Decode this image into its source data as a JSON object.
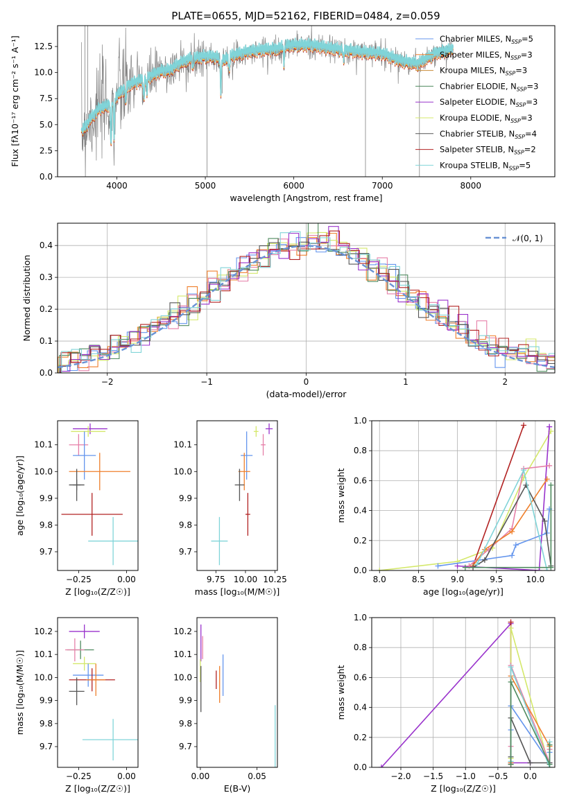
{
  "figure_title": "PLATE=0655, MJD=52162, FIBERID=0484, z=0.059",
  "colors": {
    "chabrier_miles": "#6495ed",
    "salpeter_miles": "#ef7f2b",
    "kroupa_miles": "#c78a35",
    "chabrier_elodie": "#4e8a5e",
    "salpeter_elodie": "#9932cc",
    "kroupa_elodie": "#d4e86a",
    "chabrier_stelib": "#555555",
    "salpeter_stelib": "#b22222",
    "kroupa_stelib": "#80d4d8",
    "pink": "#e67fa8",
    "data_spectrum": "#808080",
    "normal": "#6a93d4"
  },
  "chart_data": [
    {
      "id": "spectrum",
      "type": "line",
      "title": "PLATE=0655, MJD=52162, FIBERID=0484, z=0.059",
      "xlabel": "wavelength [Angstrom, rest frame]",
      "ylabel": "Flux [fλ10⁻¹⁷ erg cm⁻² s⁻¹ A⁻¹]",
      "xlim": [
        3330,
        8950
      ],
      "ylim": [
        0,
        14.5
      ],
      "xticks": [
        "4000",
        "5000",
        "6000",
        "7000",
        "8000"
      ],
      "yticks": [
        "0.0",
        "2.5",
        "5.0",
        "7.5",
        "10.0",
        "12.5"
      ],
      "continuum": {
        "x": [
          3600,
          3700,
          3800,
          3900,
          4000,
          4100,
          4200,
          4300,
          4400,
          4500,
          4600,
          4700,
          4800,
          4900,
          5000,
          5100,
          5200,
          5300,
          5400,
          5500,
          5600,
          5700,
          5800,
          5900,
          6000,
          6200,
          6400,
          6600,
          6800,
          7000,
          7200,
          7400,
          7600,
          7800
        ],
        "y": [
          4.2,
          5.5,
          6.5,
          6.8,
          7.7,
          8.6,
          9.0,
          9.3,
          9.7,
          10.1,
          10.2,
          10.8,
          11.2,
          11.4,
          11.5,
          11.5,
          11.1,
          11.6,
          11.8,
          12.0,
          12.1,
          12.2,
          12.2,
          12.5,
          12.6,
          12.6,
          12.3,
          12.1,
          11.9,
          11.8,
          11.1,
          10.8,
          11.8,
          12.2
        ]
      },
      "legend": [
        {
          "label": "Chabrier MILES, N",
          "sub": "SSP",
          "suffix": "=5",
          "color": "chabrier_miles"
        },
        {
          "label": "Salpeter MILES, N",
          "sub": "SSP",
          "suffix": "=3",
          "color": "salpeter_miles"
        },
        {
          "label": "Kroupa MILES, N",
          "sub": "SSP",
          "suffix": "=3",
          "color": "kroupa_miles"
        },
        {
          "label": "Chabrier ELODIE, N",
          "sub": "SSP",
          "suffix": "=3",
          "color": "chabrier_elodie"
        },
        {
          "label": "Salpeter ELODIE, N",
          "sub": "SSP",
          "suffix": "=3",
          "color": "salpeter_elodie"
        },
        {
          "label": "Kroupa ELODIE, N",
          "sub": "SSP",
          "suffix": "=3",
          "color": "kroupa_elodie"
        },
        {
          "label": "Chabrier STELIB, N",
          "sub": "SSP",
          "suffix": "=4",
          "color": "chabrier_stelib"
        },
        {
          "label": "Salpeter STELIB, N",
          "sub": "SSP",
          "suffix": "=2",
          "color": "salpeter_stelib"
        },
        {
          "label": "Kroupa STELIB, N",
          "sub": "SSP",
          "suffix": "=5",
          "color": "kroupa_stelib"
        }
      ]
    },
    {
      "id": "residuals",
      "type": "line",
      "xlabel": "(data-model)/error",
      "ylabel": "Normed distribution",
      "xlim": [
        -2.5,
        2.5
      ],
      "ylim": [
        0,
        0.47
      ],
      "xticks": [
        "−2",
        "−1",
        "0",
        "1",
        "2"
      ],
      "yticks": [
        "0.0",
        "0.1",
        "0.2",
        "0.3",
        "0.4"
      ],
      "grid": true,
      "legend_label": "𝒩(0, 1)",
      "legend_position": "top-right",
      "hist_x": [
        -2.5,
        -2.4,
        -2.3,
        -2.2,
        -2.1,
        -2.0,
        -1.9,
        -1.8,
        -1.7,
        -1.6,
        -1.5,
        -1.4,
        -1.3,
        -1.2,
        -1.1,
        -1.0,
        -0.9,
        -0.8,
        -0.7,
        -0.6,
        -0.5,
        -0.4,
        -0.3,
        -0.2,
        -0.1,
        0.0,
        0.1,
        0.2,
        0.3,
        0.4,
        0.5,
        0.6,
        0.7,
        0.8,
        0.9,
        1.0,
        1.1,
        1.2,
        1.3,
        1.4,
        1.5,
        1.6,
        1.7,
        1.8,
        1.9,
        2.0,
        2.1,
        2.2,
        2.3,
        2.4,
        2.5
      ]
    },
    {
      "id": "age_vs_z",
      "type": "scatter",
      "xlabel": "Z [log₁₀(Z/Z☉)]",
      "ylabel": "age  [log₁₀(age/yr)]",
      "xlim": [
        -0.36,
        0.06
      ],
      "ylim": [
        9.63,
        10.19
      ],
      "xticks": [
        "−0.25",
        "0.00"
      ],
      "yticks": [
        "9.7",
        "9.8",
        "9.9",
        "10.0",
        "10.1"
      ],
      "points": [
        {
          "x": -0.19,
          "y": 10.16,
          "xerr": 0.09,
          "yerr": 0.02,
          "color": "salpeter_elodie"
        },
        {
          "x": -0.2,
          "y": 10.15,
          "xerr": 0.09,
          "yerr": 0.02,
          "color": "kroupa_elodie"
        },
        {
          "x": -0.25,
          "y": 10.1,
          "xerr": 0.05,
          "yerr": 0.04,
          "color": "pink"
        },
        {
          "x": -0.22,
          "y": 10.06,
          "xerr": 0.06,
          "yerr": 0.09,
          "color": "chabrier_miles"
        },
        {
          "x": -0.14,
          "y": 10.0,
          "xerr": 0.16,
          "yerr": 0.07,
          "color": "salpeter_miles"
        },
        {
          "x": -0.26,
          "y": 9.95,
          "xerr": 0.04,
          "yerr": 0.02,
          "color": "chabrier_stelib"
        },
        {
          "x": -0.26,
          "y": 9.95,
          "xerr": 0.02,
          "yerr": 0.06,
          "color": "chabrier_stelib"
        },
        {
          "x": -0.18,
          "y": 9.84,
          "xerr": 0.16,
          "yerr": 0.08,
          "color": "salpeter_stelib"
        },
        {
          "x": -0.07,
          "y": 9.74,
          "xerr": 0.13,
          "yerr": 0.09,
          "color": "kroupa_stelib"
        }
      ]
    },
    {
      "id": "age_vs_mass",
      "type": "scatter",
      "xlabel": "mass [log₁₀(M/M☉)]",
      "xlim": [
        9.59,
        10.27
      ],
      "ylim": [
        9.63,
        10.19
      ],
      "xticks": [
        "9.75",
        "10.00",
        "10.25"
      ],
      "yticks": [
        "9.7",
        "9.8",
        "9.9",
        "10.0",
        "10.1"
      ],
      "points": [
        {
          "x": 10.2,
          "y": 10.16,
          "xerr": 0.03,
          "yerr": 0.02,
          "color": "salpeter_elodie"
        },
        {
          "x": 10.09,
          "y": 10.15,
          "xerr": 0.02,
          "yerr": 0.02,
          "color": "kroupa_elodie"
        },
        {
          "x": 10.15,
          "y": 10.1,
          "xerr": 0.02,
          "yerr": 0.04,
          "color": "pink"
        },
        {
          "x": 10.01,
          "y": 10.06,
          "xerr": 0.05,
          "yerr": 0.09,
          "color": "chabrier_miles"
        },
        {
          "x": 9.99,
          "y": 10.0,
          "xerr": 0.05,
          "yerr": 0.07,
          "color": "salpeter_miles"
        },
        {
          "x": 9.95,
          "y": 9.95,
          "xerr": 0.04,
          "yerr": 0.06,
          "color": "chabrier_stelib"
        },
        {
          "x": 10.02,
          "y": 9.84,
          "xerr": 0.02,
          "yerr": 0.08,
          "color": "salpeter_stelib"
        },
        {
          "x": 9.78,
          "y": 9.74,
          "xerr": 0.07,
          "yerr": 0.09,
          "color": "kroupa_stelib"
        }
      ]
    },
    {
      "id": "mass_weight_vs_age",
      "type": "line",
      "xlabel": "age  [log₁₀(age/yr)]",
      "ylabel": "mass weight",
      "xlim": [
        7.9,
        10.25
      ],
      "ylim": [
        0,
        1
      ],
      "xticks": [
        "8.0",
        "8.5",
        "9.0",
        "9.5",
        "10.0"
      ],
      "yticks": [
        "0.0",
        "0.2",
        "0.4",
        "0.6",
        "0.8",
        "1.0"
      ],
      "grid": true,
      "series": [
        {
          "color": "kroupa_elodie",
          "x": [
            8.0,
            9.0,
            9.45,
            9.85,
            10.2
          ],
          "y": [
            0.0,
            0.06,
            0.15,
            0.62,
            0.93
          ]
        },
        {
          "color": "salpeter_stelib",
          "x": [
            9.2,
            9.85
          ],
          "y": [
            0.03,
            0.97
          ]
        },
        {
          "color": "salpeter_elodie",
          "x": [
            9.0,
            10.05,
            10.18,
            10.18
          ],
          "y": [
            0.03,
            0.0,
            0.96,
            0.96
          ]
        },
        {
          "color": "chabrier_miles",
          "x": [
            8.75,
            9.7,
            9.75,
            10.15,
            10.18
          ],
          "y": [
            0.03,
            0.1,
            0.17,
            0.25,
            0.41
          ]
        },
        {
          "color": "pink",
          "x": [
            9.15,
            9.4,
            9.7,
            9.85,
            10.18
          ],
          "y": [
            0.03,
            0.14,
            0.28,
            0.68,
            0.7
          ]
        },
        {
          "color": "salpeter_miles",
          "x": [
            9.2,
            9.35,
            9.7,
            10.15
          ],
          "y": [
            0.03,
            0.14,
            0.26,
            0.61
          ]
        },
        {
          "color": "chabrier_stelib",
          "x": [
            9.2,
            9.35,
            9.88,
            10.12,
            10.2
          ],
          "y": [
            0.02,
            0.07,
            0.57,
            0.33,
            0.03
          ]
        },
        {
          "color": "kroupa_stelib",
          "x": [
            9.25,
            9.85,
            10.15
          ],
          "y": [
            0.04,
            0.67,
            0.0
          ]
        },
        {
          "color": "chabrier_elodie",
          "x": [
            9.1,
            10.2,
            10.2
          ],
          "y": [
            0.02,
            0.02,
            0.57
          ]
        }
      ]
    },
    {
      "id": "mass_vs_z",
      "type": "scatter",
      "xlabel": "Z [log₁₀(Z/Z☉)]",
      "ylabel": "mass [log₁₀(M/M☉)]",
      "xlim": [
        -0.36,
        0.06
      ],
      "ylim": [
        9.61,
        10.26
      ],
      "xticks": [
        "−0.25",
        "0.00"
      ],
      "yticks": [
        "9.7",
        "9.8",
        "9.9",
        "10.0",
        "10.1",
        "10.2"
      ],
      "points": [
        {
          "x": -0.22,
          "y": 10.2,
          "xerr": 0.08,
          "yerr": 0.03,
          "color": "salpeter_elodie"
        },
        {
          "x": -0.24,
          "y": 10.12,
          "xerr": 0.07,
          "yerr": 0.04,
          "color": "chabrier_elodie"
        },
        {
          "x": -0.27,
          "y": 10.12,
          "xerr": 0.05,
          "yerr": 0.05,
          "color": "pink"
        },
        {
          "x": -0.22,
          "y": 10.06,
          "xerr": 0.06,
          "yerr": 0.03,
          "color": "kroupa_elodie"
        },
        {
          "x": -0.2,
          "y": 10.01,
          "xerr": 0.08,
          "yerr": 0.05,
          "color": "chabrier_miles"
        },
        {
          "x": -0.18,
          "y": 9.99,
          "xerr": 0.12,
          "yerr": 0.05,
          "color": "salpeter_stelib"
        },
        {
          "x": -0.16,
          "y": 9.99,
          "xerr": 0.05,
          "yerr": 0.07,
          "color": "salpeter_miles"
        },
        {
          "x": -0.26,
          "y": 9.94,
          "xerr": 0.04,
          "yerr": 0.06,
          "color": "chabrier_stelib"
        },
        {
          "x": -0.07,
          "y": 9.73,
          "xerr": 0.16,
          "yerr": 0.09,
          "color": "kroupa_stelib"
        }
      ]
    },
    {
      "id": "mass_vs_ebv",
      "type": "scatter",
      "xlabel": "E(B-V)",
      "xlim": [
        -0.003,
        0.068
      ],
      "ylim": [
        9.61,
        10.26
      ],
      "xticks": [
        "0.00",
        "0.05"
      ],
      "yticks": [
        "9.7",
        "9.8",
        "9.9",
        "10.0",
        "10.1",
        "10.2"
      ],
      "points": [
        {
          "x": 0.0005,
          "y": 10.15,
          "xerr": 0,
          "yerr": 0.08,
          "color": "salpeter_elodie"
        },
        {
          "x": 0.002,
          "y": 10.13,
          "xerr": 0,
          "yerr": 0.05,
          "color": "pink"
        },
        {
          "x": 0.0,
          "y": 10.03,
          "xerr": 0,
          "yerr": 0.05,
          "color": "kroupa_elodie"
        },
        {
          "x": 0.0005,
          "y": 9.95,
          "xerr": 0,
          "yerr": 0.1,
          "color": "chabrier_stelib"
        },
        {
          "x": 0.02,
          "y": 10.01,
          "xerr": 0,
          "yerr": 0.09,
          "color": "chabrier_miles"
        },
        {
          "x": 0.017,
          "y": 9.97,
          "xerr": 0,
          "yerr": 0.08,
          "color": "salpeter_miles"
        },
        {
          "x": 0.014,
          "y": 9.99,
          "xerr": 0,
          "yerr": 0.04,
          "color": "salpeter_stelib"
        },
        {
          "x": 0.066,
          "y": 9.73,
          "xerr": 0,
          "yerr": 0.15,
          "color": "kroupa_stelib"
        }
      ]
    },
    {
      "id": "mass_weight_vs_z",
      "type": "line",
      "xlabel": "Z [log₁₀(Z/Z☉)]",
      "ylabel": "mass weight",
      "xlim": [
        -2.45,
        0.38
      ],
      "ylim": [
        0,
        1
      ],
      "xticks": [
        "−2.0",
        "−1.5",
        "−1.0",
        "−0.5",
        "0.0"
      ],
      "yticks": [
        "0.0",
        "0.2",
        "0.4",
        "0.6",
        "0.8",
        "1.0"
      ],
      "grid": true,
      "series": [
        {
          "color": "salpeter_elodie",
          "x": [
            -2.3,
            -0.3,
            -0.3,
            0.0
          ],
          "y": [
            0.0,
            0.96,
            0.03,
            0.03
          ]
        },
        {
          "color": "salpeter_stelib",
          "x": [
            -0.3,
            -0.3
          ],
          "y": [
            0.02,
            0.97
          ]
        },
        {
          "color": "kroupa_elodie",
          "x": [
            -0.3,
            -0.3,
            0.3,
            0.3
          ],
          "y": [
            0.06,
            0.93,
            0.0,
            0.15
          ]
        },
        {
          "color": "chabrier_miles",
          "x": [
            -0.3,
            -0.3,
            -0.3,
            0.3,
            0.3
          ],
          "y": [
            0.03,
            0.25,
            0.41,
            0.03,
            0.1
          ]
        },
        {
          "color": "pink",
          "x": [
            -0.3,
            -0.3,
            0.3,
            0.3
          ],
          "y": [
            0.14,
            0.68,
            0.03,
            0.12
          ]
        },
        {
          "color": "salpeter_miles",
          "x": [
            -0.3,
            -0.3,
            0.3
          ],
          "y": [
            0.03,
            0.61,
            0.14
          ]
        },
        {
          "color": "chabrier_stelib",
          "x": [
            -0.3,
            -0.3,
            0.0,
            0.3
          ],
          "y": [
            0.07,
            0.33,
            0.03,
            0.03
          ]
        },
        {
          "color": "kroupa_stelib",
          "x": [
            -0.3,
            -0.3,
            0.3,
            0.3
          ],
          "y": [
            0.04,
            0.67,
            0.0,
            0.17
          ]
        },
        {
          "color": "chabrier_elodie",
          "x": [
            -0.3,
            -0.3,
            0.3,
            0.3
          ],
          "y": [
            0.02,
            0.57,
            0.02,
            0.15
          ]
        }
      ]
    }
  ]
}
